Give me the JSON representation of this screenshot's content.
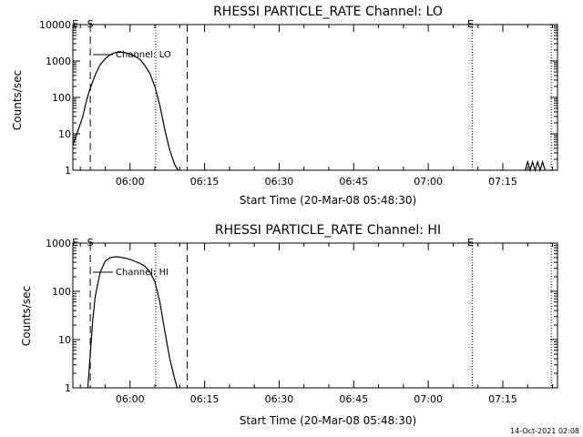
{
  "timestamp": "14-Oct-2021 02:08",
  "chart_data": [
    {
      "type": "line",
      "title": "RHESSI PARTICLE_RATE Channel: LO",
      "xlabel": "Start Time (20-Mar-08 05:48:30)",
      "ylabel": "Counts/sec",
      "yscale": "log",
      "ylim": [
        1,
        10000
      ],
      "yticks": [
        "1",
        "10",
        "100",
        "1000",
        "10000"
      ],
      "xlim": [
        "05:48:30",
        "07:26:00"
      ],
      "xticks": [
        "06:00",
        "06:15",
        "06:30",
        "06:45",
        "07:00",
        "07:15"
      ],
      "grid": false,
      "annotation": "Channel: LO",
      "markers": [
        {
          "label": "E",
          "time": "05:49:00"
        },
        {
          "label": "S",
          "time": "05:52:00"
        },
        {
          "label": "E",
          "time": "07:08:30"
        }
      ],
      "vlines": [
        {
          "time": "05:52:00",
          "style": "dashed"
        },
        {
          "time": "06:11:30",
          "style": "dashed"
        },
        {
          "time": "06:05:10",
          "style": "dotted"
        },
        {
          "time": "07:08:50",
          "style": "dotted"
        },
        {
          "time": "07:24:45",
          "style": "dotted"
        }
      ],
      "series": [
        {
          "x": [
            "05:48:30",
            "05:49:30",
            "05:50:30",
            "05:51:00",
            "05:51:30",
            "05:52:00",
            "05:53:00",
            "05:54:00",
            "05:55:00",
            "05:56:00",
            "05:57:00",
            "05:58:00",
            "05:59:00",
            "06:00:00",
            "06:01:00",
            "06:02:00",
            "06:03:00",
            "06:04:00",
            "06:05:00",
            "06:06:00",
            "06:07:00",
            "06:08:00",
            "06:09:00",
            "06:09:40"
          ],
          "y": [
            5,
            12,
            30,
            60,
            110,
            180,
            420,
            800,
            1150,
            1500,
            1700,
            1750,
            1700,
            1550,
            1350,
            1100,
            750,
            450,
            200,
            60,
            13,
            3.5,
            1.4,
            1
          ]
        },
        {
          "x": [
            "07:19:30",
            "07:20:00",
            "07:20:30",
            "07:21:00",
            "07:21:30",
            "07:22:00",
            "07:22:30",
            "07:23:00",
            "07:23:30"
          ],
          "y": [
            1,
            1.7,
            1,
            1.7,
            1,
            1.7,
            1,
            1.7,
            1
          ]
        }
      ]
    },
    {
      "type": "line",
      "title": "RHESSI PARTICLE_RATE Channel: HI",
      "xlabel": "Start Time (20-Mar-08 05:48:30)",
      "ylabel": "Counts/sec",
      "yscale": "log",
      "ylim": [
        1,
        1000
      ],
      "yticks": [
        "1",
        "10",
        "100",
        "1000"
      ],
      "xlim": [
        "05:48:30",
        "07:26:00"
      ],
      "xticks": [
        "06:00",
        "06:15",
        "06:30",
        "06:45",
        "07:00",
        "07:15"
      ],
      "grid": false,
      "annotation": "Channel: HI",
      "markers": [
        {
          "label": "E",
          "time": "05:49:00"
        },
        {
          "label": "S",
          "time": "05:52:00"
        },
        {
          "label": "E",
          "time": "07:08:30"
        }
      ],
      "vlines": [
        {
          "time": "05:52:00",
          "style": "dashed"
        },
        {
          "time": "06:11:30",
          "style": "dashed"
        },
        {
          "time": "06:05:10",
          "style": "dotted"
        },
        {
          "time": "07:08:50",
          "style": "dotted"
        },
        {
          "time": "07:24:45",
          "style": "dotted"
        }
      ],
      "series": [
        {
          "x": [
            "05:51:30",
            "05:52:00",
            "05:52:30",
            "05:53:00",
            "05:54:00",
            "05:55:00",
            "05:56:00",
            "05:57:00",
            "05:58:00",
            "05:59:00",
            "06:00:00",
            "06:01:00",
            "06:02:00",
            "06:03:00",
            "06:04:00",
            "06:05:00",
            "06:06:00",
            "06:07:00",
            "06:08:00",
            "06:09:00",
            "06:09:30"
          ],
          "y": [
            1,
            5,
            25,
            80,
            250,
            420,
            500,
            520,
            510,
            490,
            460,
            420,
            380,
            330,
            250,
            160,
            60,
            15,
            4,
            1.5,
            1
          ]
        }
      ]
    }
  ]
}
